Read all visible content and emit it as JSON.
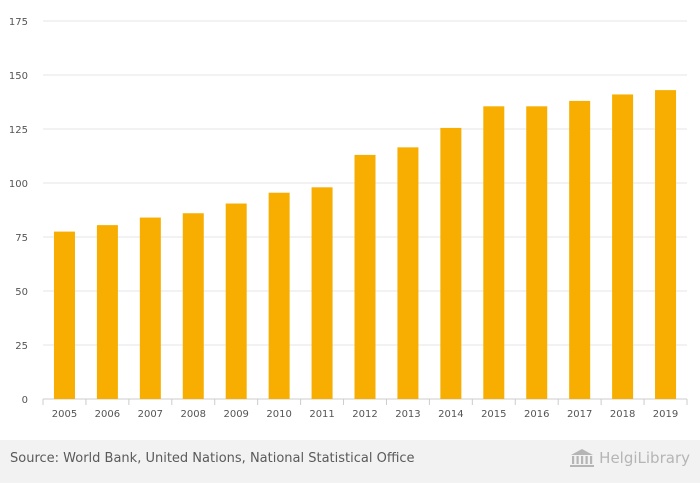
{
  "chart_data": {
    "type": "bar",
    "categories": [
      "2005",
      "2006",
      "2007",
      "2008",
      "2009",
      "2010",
      "2011",
      "2012",
      "2013",
      "2014",
      "2015",
      "2016",
      "2017",
      "2018",
      "2019"
    ],
    "values": [
      77.5,
      80.5,
      84,
      86,
      90.5,
      95.5,
      98,
      113,
      116.5,
      125.5,
      135.5,
      135.5,
      138,
      141,
      143
    ],
    "yticks": [
      0,
      25,
      50,
      75,
      100,
      125,
      150,
      175
    ],
    "ylim": [
      0,
      175
    ],
    "title": "",
    "xlabel": "",
    "ylabel": "",
    "grid": true,
    "bar_color": "#f7ae00",
    "grid_color": "#e6e6e6"
  },
  "footer": {
    "source": "Source: World Bank, United Nations, National Statistical Office",
    "brand_name": "HelgiLibrary",
    "brand_icon": "library-building-icon"
  }
}
